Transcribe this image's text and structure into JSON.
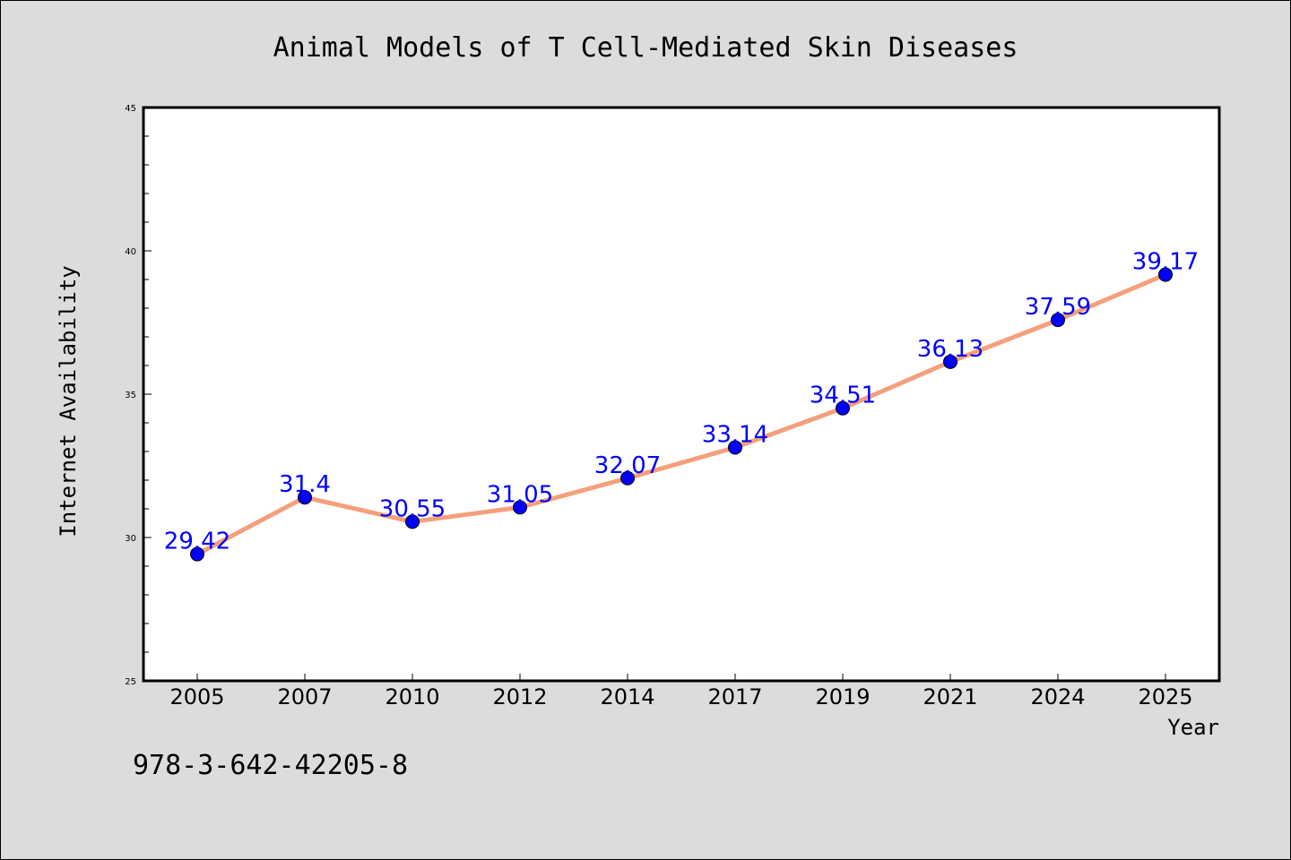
{
  "chart_data": {
    "type": "line",
    "title": "Animal Models of T Cell-Mediated Skin Diseases",
    "xlabel": "Year",
    "ylabel": "Internet Availability",
    "categories": [
      "2005",
      "2007",
      "2010",
      "2012",
      "2014",
      "2017",
      "2019",
      "2021",
      "2024",
      "2025"
    ],
    "values": [
      29.42,
      31.4,
      30.55,
      31.05,
      32.07,
      33.14,
      34.51,
      36.13,
      37.59,
      39.17
    ],
    "data_labels": [
      "29.42",
      "31.4",
      "30.55",
      "31.05",
      "32.07",
      "33.14",
      "34.51",
      "36.13",
      "37.59",
      "39.17"
    ],
    "ylim": [
      25,
      45
    ],
    "y_ticks": [
      25,
      30,
      35,
      40,
      45
    ],
    "y_tick_labels": [
      "25",
      "30",
      "35",
      "40",
      "45"
    ],
    "grid": false,
    "line_color": "#f4a07c",
    "marker_color": "#0000ff",
    "label_color": "#0000ff"
  },
  "footer_text": "978-3-642-42205-8"
}
